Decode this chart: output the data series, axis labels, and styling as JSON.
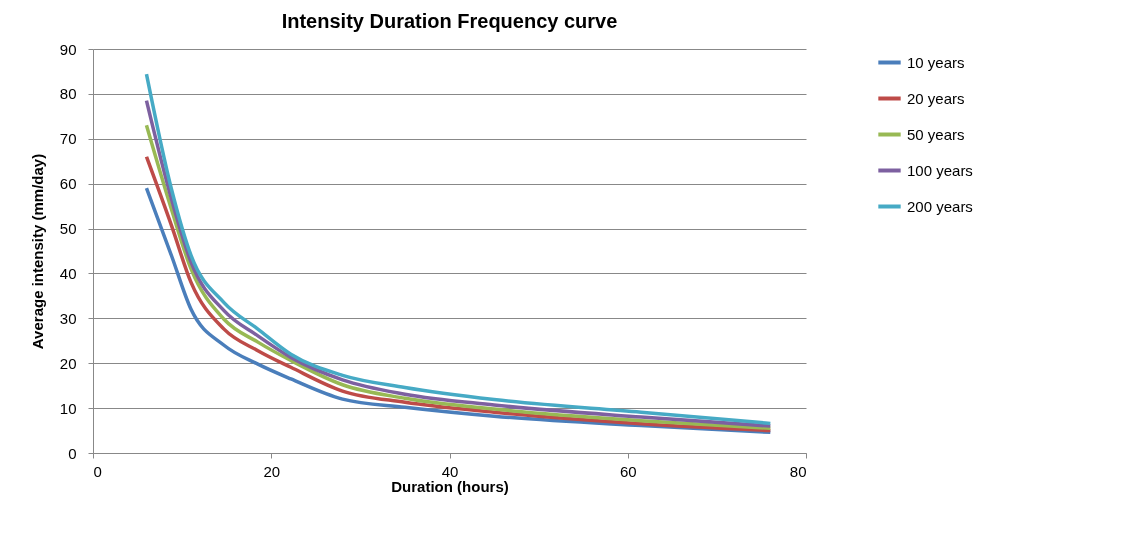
{
  "chart_data": {
    "type": "line",
    "title": "Intensity Duration Frequency curve",
    "xlabel": "Duration (hours)",
    "ylabel": "Average intensity (mm/day)",
    "x": [
      6,
      8.8,
      11,
      14.7,
      18.5,
      22.2,
      28,
      35,
      45,
      61.5,
      76
    ],
    "series": [
      {
        "name": "10 years",
        "color": "#4a7ebb",
        "values": [
          59,
          44,
          32,
          24,
          19.8,
          16.5,
          12,
          10.2,
          8.2,
          6.1,
          4.6
        ]
      },
      {
        "name": "20 years",
        "color": "#be4b48",
        "values": [
          66,
          50.7,
          38,
          27.6,
          22.8,
          19.1,
          13.8,
          11.3,
          9.1,
          6.5,
          5
        ]
      },
      {
        "name": "50 years",
        "color": "#98b954",
        "values": [
          73,
          54.3,
          41,
          29.8,
          24.7,
          20.6,
          15.2,
          12.2,
          9.8,
          7.2,
          5.5
        ]
      },
      {
        "name": "100 years",
        "color": "#7d60a0",
        "values": [
          78.5,
          56.6,
          42.5,
          31.7,
          26.1,
          21.3,
          16.3,
          13.1,
          10.7,
          8,
          6
        ]
      },
      {
        "name": "200 years",
        "color": "#46aac5",
        "values": [
          84.4,
          58.8,
          44,
          33.5,
          27.6,
          22,
          17.3,
          14.6,
          11.9,
          9.1,
          6.6
        ]
      }
    ],
    "xlim": [
      0,
      80
    ],
    "xticks": [
      0,
      20,
      40,
      60,
      80
    ],
    "ylim": [
      0,
      90
    ],
    "yticks": [
      0,
      10,
      20,
      30,
      40,
      50,
      60,
      70,
      80,
      90
    ],
    "grid": "y",
    "legend": "right",
    "marker": "none",
    "line_style": "solid"
  }
}
